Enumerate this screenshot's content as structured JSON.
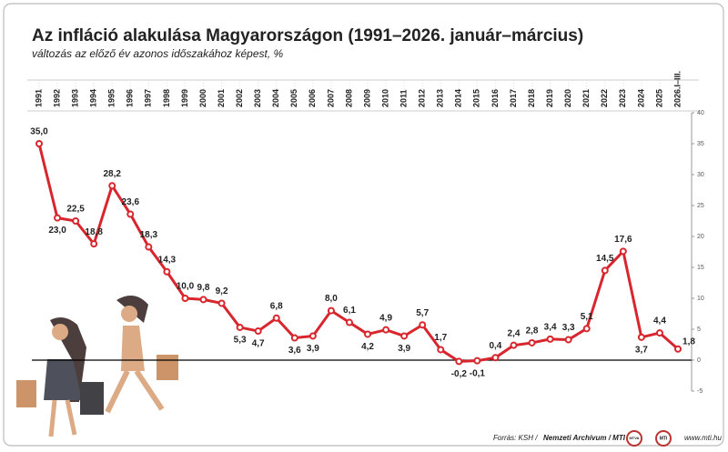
{
  "chart_data": {
    "type": "line",
    "title": "Az infláció alakulása Magyarországon (1991–2026. január–március)",
    "subtitle": "változás az előző év azonos időszakához képest, %",
    "categories": [
      "1991",
      "1992",
      "1993",
      "1994",
      "1995",
      "1996",
      "1997",
      "1998",
      "1999",
      "2000",
      "2001",
      "2002",
      "2003",
      "2004",
      "2005",
      "2006",
      "2007",
      "2008",
      "2009",
      "2010",
      "2011",
      "2012",
      "2013",
      "2014",
      "2015",
      "2016",
      "2017",
      "2018",
      "2019",
      "2020",
      "2021",
      "2022",
      "2023",
      "2024",
      "2025",
      "2026.I–III."
    ],
    "series": [
      {
        "name": "infláció",
        "color": "#d7262d",
        "values": [
          35.0,
          23.0,
          22.5,
          18.8,
          28.2,
          23.6,
          18.3,
          14.3,
          10.0,
          9.8,
          9.2,
          5.3,
          4.7,
          6.8,
          3.6,
          3.9,
          8.0,
          6.1,
          4.2,
          4.9,
          3.9,
          5.7,
          1.7,
          -0.2,
          -0.1,
          0.4,
          2.4,
          2.8,
          3.4,
          3.3,
          5.1,
          14.5,
          17.6,
          3.7,
          4.4,
          1.8
        ],
        "value_labels": [
          "35,0",
          "23,0",
          "22,5",
          "18,8",
          "28,2",
          "23,6",
          "18,3",
          "14,3",
          "10,0",
          "9,8",
          "9,2",
          "5,3",
          "4,7",
          "6,8",
          "3,6",
          "3,9",
          "8,0",
          "6,1",
          "4,2",
          "4,9",
          "3,9",
          "5,7",
          "1,7",
          "-0,2",
          "-0,1",
          "0,4",
          "2,4",
          "2,8",
          "3,4",
          "3,3",
          "5,1",
          "14,5",
          "17,6",
          "3,7",
          "4,4",
          "1,8"
        ]
      }
    ],
    "ylim": [
      -5,
      40
    ],
    "yticks": [
      -5,
      0,
      5,
      10,
      15,
      20,
      25,
      30,
      35,
      40
    ],
    "source_prefix": "Forrás: KSH /",
    "source_bold": "Nemzeti Archívum / MTI",
    "logos": [
      "MTVA",
      "MTI"
    ],
    "website": "www.mti.hu"
  }
}
